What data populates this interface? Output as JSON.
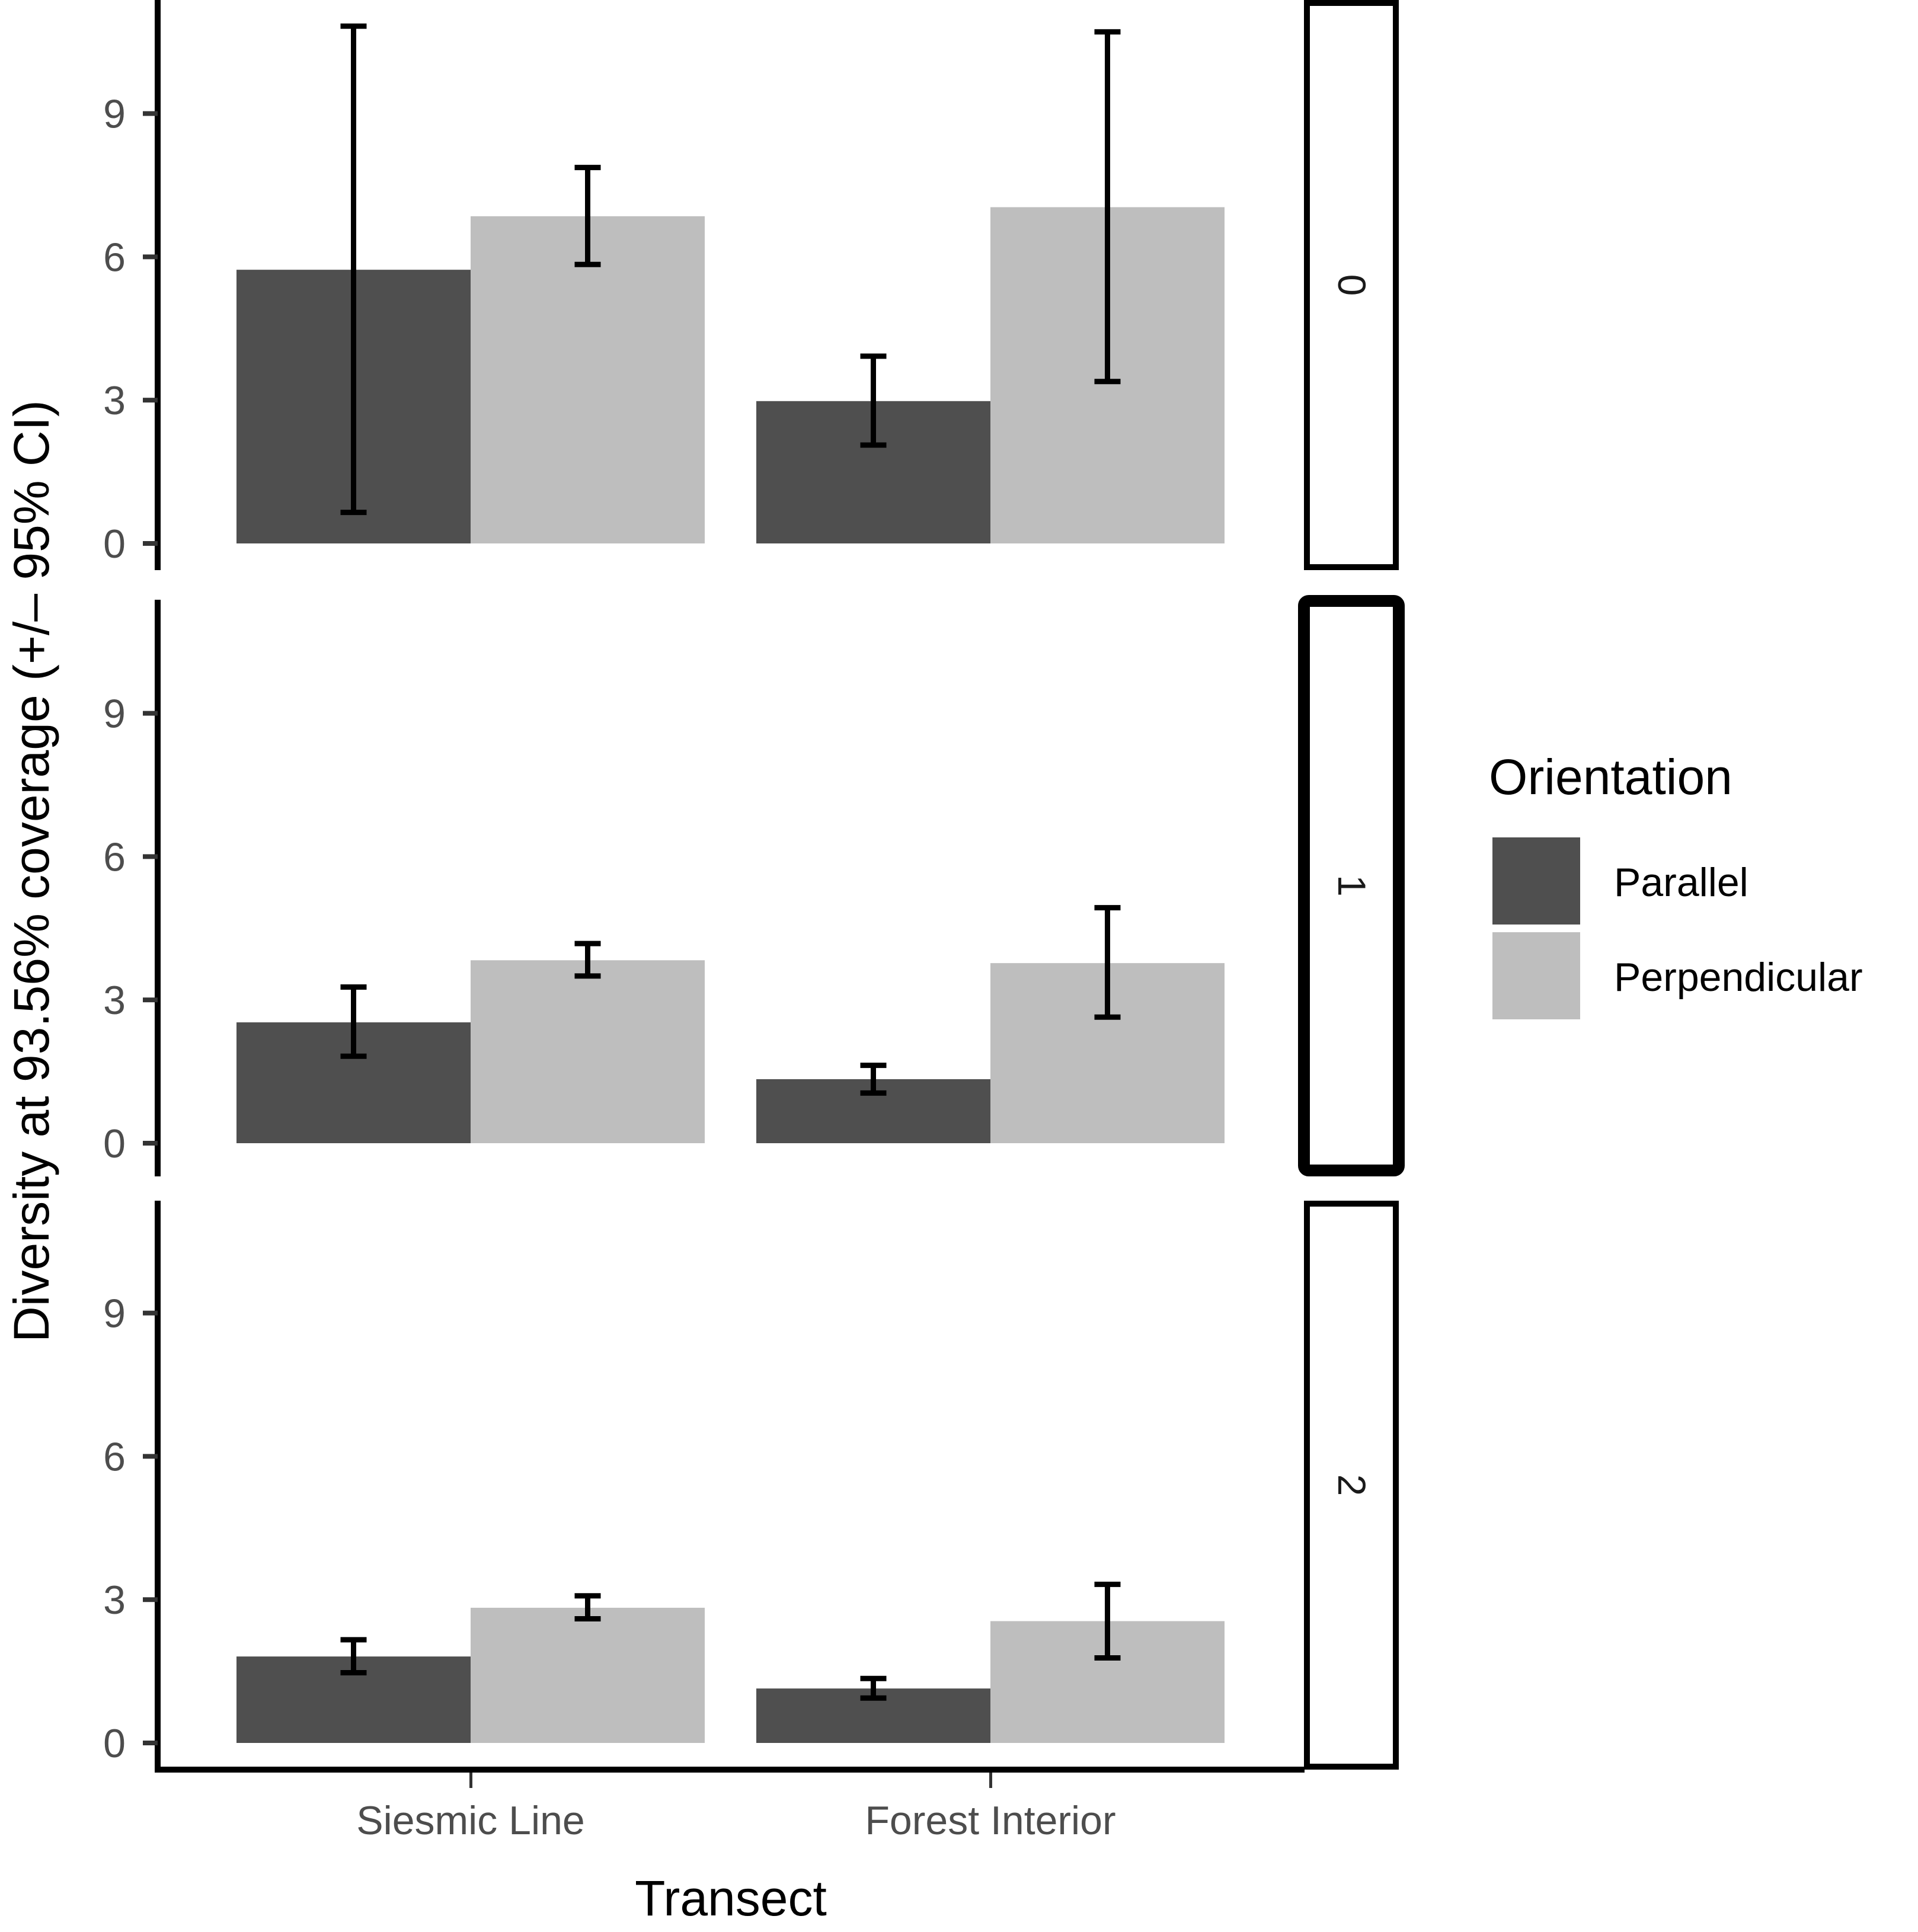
{
  "chart_data": {
    "type": "bar",
    "title": "",
    "xlabel": "Transect",
    "ylabel": "Diversity at 93.56% coverage (+/– 95% CI)",
    "categories": [
      "Siesmic Line",
      "Forest Interior"
    ],
    "yticks": [
      0,
      3,
      6,
      9
    ],
    "ylim": [
      -0.5,
      11.4
    ],
    "grid": false,
    "legend": {
      "title": "Orientation",
      "position": "right",
      "entries": [
        {
          "name": "Parallel",
          "color": "#4f4f4f"
        },
        {
          "name": "Perpendicular",
          "color": "#bebebe"
        }
      ]
    },
    "facets": [
      {
        "label": "0",
        "series": [
          {
            "name": "Parallel",
            "values": [
              5.73,
              2.98
            ],
            "ci_low": [
              0.65,
              2.06
            ],
            "ci_high": [
              10.83,
              3.92
            ]
          },
          {
            "name": "Perpendicular",
            "values": [
              6.85,
              7.04
            ],
            "ci_low": [
              5.84,
              3.39
            ],
            "ci_high": [
              7.87,
              10.71
            ]
          }
        ]
      },
      {
        "label": "1",
        "series": [
          {
            "name": "Parallel",
            "values": [
              2.53,
              1.34
            ],
            "ci_low": [
              1.82,
              1.05
            ],
            "ci_high": [
              3.27,
              1.63
            ]
          },
          {
            "name": "Perpendicular",
            "values": [
              3.83,
              3.77
            ],
            "ci_low": [
              3.5,
              2.64
            ],
            "ci_high": [
              4.18,
              4.93
            ]
          }
        ]
      },
      {
        "label": "2",
        "series": [
          {
            "name": "Parallel",
            "values": [
              1.81,
              1.14
            ],
            "ci_low": [
              1.47,
              0.94
            ],
            "ci_high": [
              2.16,
              1.35
            ]
          },
          {
            "name": "Perpendicular",
            "values": [
              2.83,
              2.55
            ],
            "ci_low": [
              2.6,
              1.78
            ],
            "ci_high": [
              3.08,
              3.32
            ]
          }
        ]
      }
    ]
  },
  "colors": {
    "parallel": "#4f4f4f",
    "perpendicular": "#bebebe",
    "axis": "#000000",
    "tick_text": "#4d4d4d"
  }
}
